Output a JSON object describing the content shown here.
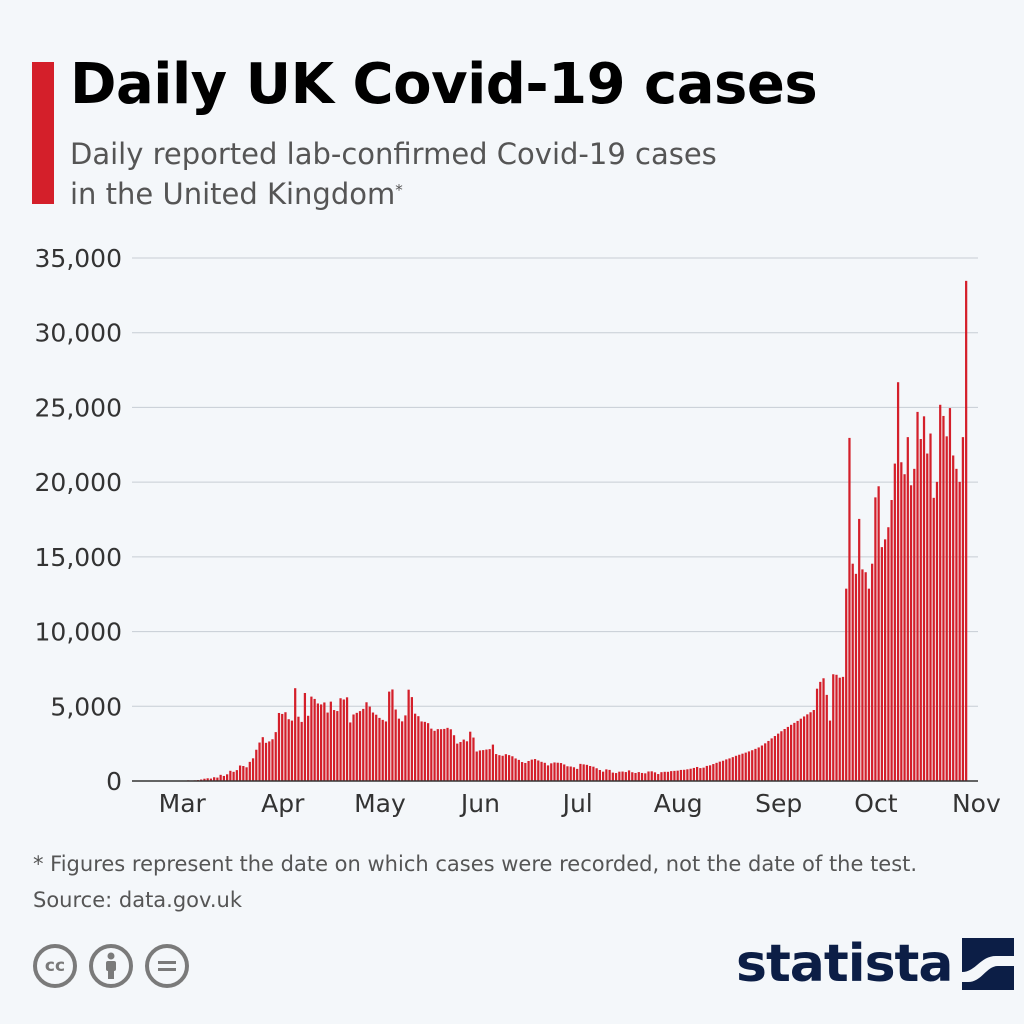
{
  "header": {
    "title": "Daily UK Covid-19 cases",
    "subtitle_line1": "Daily reported lab-confirmed Covid-19 cases",
    "subtitle_line2": "in the United Kingdom",
    "subtitle_mark": "*"
  },
  "footer": {
    "note": "* Figures represent the date on which cases were recorded, not the date of the test.",
    "source": "Source: data.gov.uk",
    "brand": "statista",
    "license_icons": [
      "cc",
      "by",
      "nd"
    ]
  },
  "colors": {
    "accent": "#d41f2a",
    "bar": "#d41f2a",
    "grid": "#c7cdd4",
    "axis": "#333333",
    "brand": "#0c1e46"
  },
  "chart_data": {
    "type": "bar",
    "title": "Daily UK Covid-19 cases",
    "ylim": [
      0,
      35000
    ],
    "yticks": [
      0,
      5000,
      10000,
      15000,
      20000,
      25000,
      30000,
      35000
    ],
    "ytick_labels": [
      "0",
      "5,000",
      "10,000",
      "15,000",
      "20,000",
      "25,000",
      "30,000",
      "35,000"
    ],
    "grid": true,
    "x_start": "2020-02-15",
    "x_end": "2020-11-01",
    "month_labels": [
      "Mar",
      "Apr",
      "May",
      "Jun",
      "Jul",
      "Aug",
      "Sep",
      "Oct",
      "Nov"
    ],
    "month_dates": [
      "2020-03-01",
      "2020-04-01",
      "2020-05-01",
      "2020-06-01",
      "2020-07-01",
      "2020-08-01",
      "2020-09-01",
      "2020-10-01",
      "2020-11-01"
    ],
    "values": [
      0,
      0,
      0,
      1,
      1,
      0,
      1,
      0,
      0,
      0,
      5,
      2,
      10,
      13,
      13,
      23,
      13,
      47,
      36,
      46,
      64,
      100,
      152,
      182,
      162,
      251,
      229,
      412,
      338,
      448,
      683,
      614,
      728,
      1037,
      1003,
      917,
      1280,
      1517,
      2092,
      2574,
      2933,
      2555,
      2650,
      2793,
      3272,
      4552,
      4487,
      4602,
      4135,
      4043,
      6210,
      4303,
      3954,
      5890,
      4365,
      5648,
      5493,
      5188,
      5124,
      5256,
      4580,
      5312,
      4749,
      4681,
      5538,
      5455,
      5600,
      3919,
      4451,
      4561,
      4677,
      4825,
      5269,
      4978,
      4583,
      4436,
      4223,
      4091,
      3984,
      5983,
      6126,
      4783,
      4173,
      3992,
      4390,
      6111,
      5614,
      4506,
      4338,
      3985,
      3958,
      3871,
      3504,
      3358,
      3471,
      3468,
      3485,
      3557,
      3461,
      3063,
      2503,
      2608,
      2772,
      2657,
      3300,
      2908,
      1973,
      2046,
      2068,
      2105,
      2133,
      2436,
      1802,
      1729,
      1688,
      1794,
      1731,
      1655,
      1509,
      1413,
      1269,
      1206,
      1339,
      1431,
      1468,
      1373,
      1283,
      1218,
      1045,
      1183,
      1241,
      1223,
      1202,
      1107,
      985,
      969,
      919,
      811,
      1146,
      1113,
      1080,
      1004,
      958,
      852,
      737,
      626,
      778,
      742,
      563,
      532,
      624,
      633,
      598,
      709,
      586,
      536,
      596,
      539,
      513,
      638,
      648,
      579,
      466,
      592,
      615,
      615,
      662,
      677,
      693,
      741,
      750,
      782,
      822,
      873,
      938,
      863,
      894,
      1010,
      1049,
      1134,
      1216,
      1295,
      1355,
      1445,
      1512,
      1597,
      1687,
      1758,
      1829,
      1900,
      1980,
      2060,
      2150,
      2246,
      2375,
      2520,
      2680,
      2850,
      3010,
      3170,
      3330,
      3480,
      3620,
      3760,
      3890,
      4020,
      4170,
      4320,
      4460,
      4600,
      4750,
      6178,
      6634,
      6874,
      5763,
      4044,
      7143,
      7108,
      6914,
      6968,
      12872,
      22961,
      14542,
      13864,
      17540,
      14162,
      13972,
      12872,
      14542,
      18980,
      19724,
      15650,
      16171,
      16982,
      18804,
      21242,
      26688,
      21331,
      20530,
      23012,
      19790,
      20890,
      24701,
      22885,
      24405,
      21915,
      23254,
      18950,
      20018,
      25177,
      24430,
      23065,
      24957,
      21784,
      20890,
      20018,
      23012,
      33470
    ]
  }
}
